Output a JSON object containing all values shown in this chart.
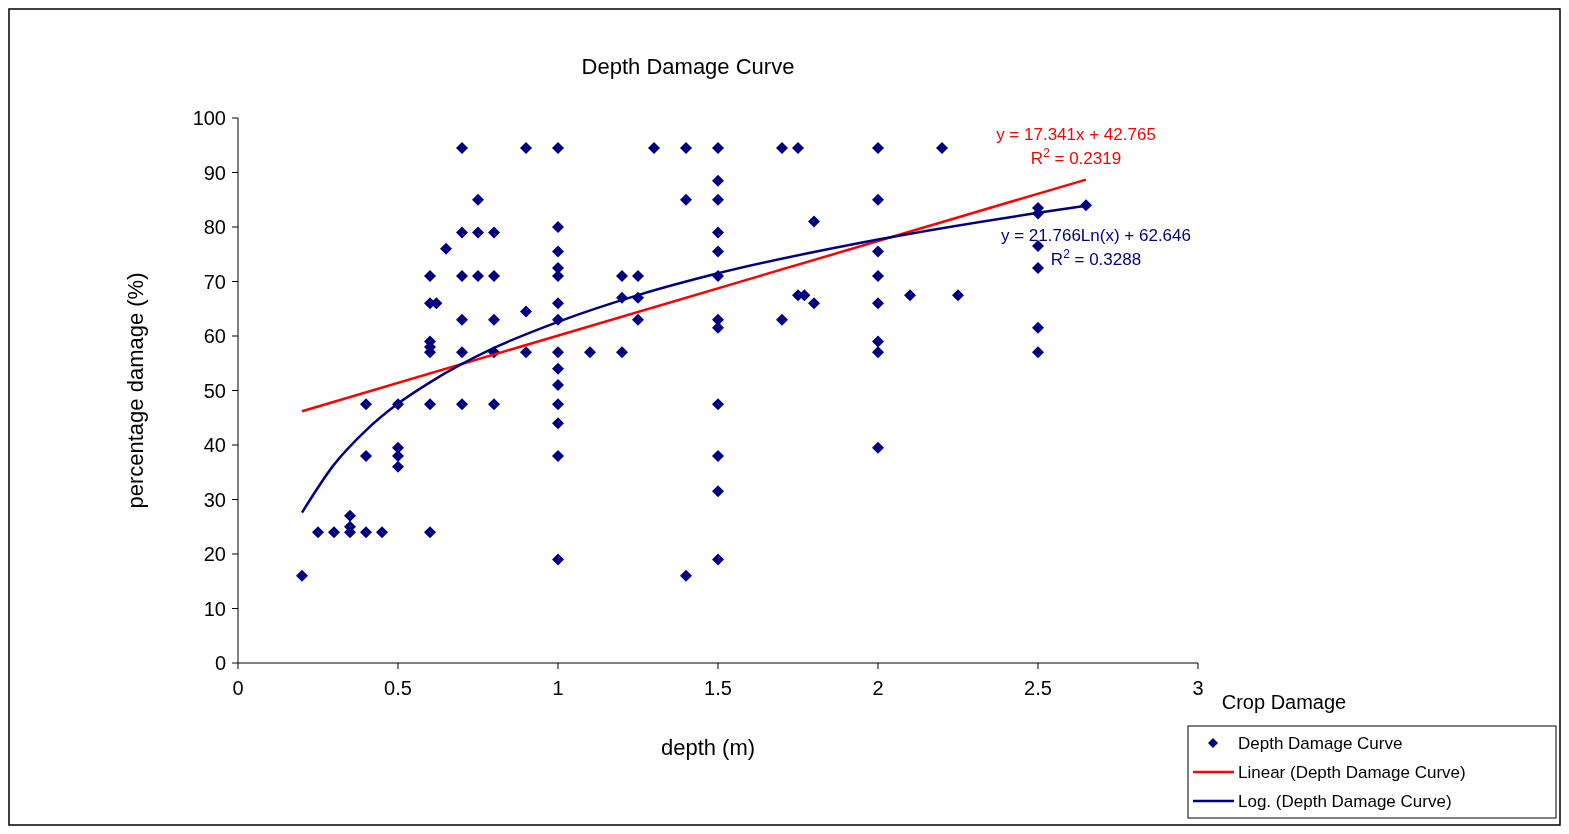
{
  "chart_data": {
    "type": "scatter",
    "title": "Depth Damage Curve",
    "xlabel": "depth (m)",
    "ylabel": "percentage damage (%)",
    "legend_title": "Crop Damage",
    "legend": "bottom right",
    "marker": "diamond",
    "grid": false,
    "xlim": [
      0,
      3
    ],
    "xticks": [
      0,
      0.5,
      1,
      1.5,
      2,
      2.5,
      3
    ],
    "ylim": [
      0,
      100
    ],
    "yticks": [
      0,
      10,
      20,
      30,
      40,
      50,
      60,
      70,
      80,
      90,
      100
    ],
    "series": [
      {
        "name": "Depth Damage Curve",
        "color": "#000080",
        "x": [
          0.2,
          0.25,
          0.3,
          0.35,
          0.35,
          0.35,
          0.4,
          0.45,
          0.4,
          0.4,
          0.5,
          0.5,
          0.5,
          0.5,
          0.6,
          0.6,
          0.6,
          0.6,
          0.6,
          0.6,
          0.62,
          0.6,
          0.65,
          0.7,
          0.7,
          0.7,
          0.7,
          0.7,
          0.7,
          0.75,
          0.75,
          0.75,
          0.8,
          0.8,
          0.8,
          0.8,
          0.8,
          0.9,
          0.9,
          0.9,
          1,
          1,
          1,
          1,
          1,
          1,
          1,
          1,
          1,
          1,
          1,
          1,
          1,
          1,
          1.1,
          1.2,
          1.2,
          1.2,
          1.25,
          1.25,
          1.25,
          1.3,
          1.4,
          1.4,
          1.4,
          1.5,
          1.5,
          1.5,
          1.5,
          1.5,
          1.5,
          1.5,
          1.5,
          1.5,
          1.5,
          1.5,
          1.5,
          1.7,
          1.75,
          1.7,
          1.75,
          1.77,
          1.8,
          1.8,
          2,
          2,
          2,
          2,
          2,
          2,
          2,
          2,
          2.1,
          2.2,
          2.25,
          2.5,
          2.5,
          2.5,
          2.5,
          2.5,
          2.5,
          2.65
        ],
        "values": [
          16,
          24,
          24,
          24,
          25,
          27,
          24,
          24,
          38,
          47.5,
          47.5,
          39.5,
          38,
          36,
          24,
          47.5,
          57,
          58,
          59,
          66,
          66,
          71,
          76,
          94.5,
          79,
          71,
          63,
          57,
          47.5,
          85,
          79,
          71,
          79,
          71,
          63,
          57,
          47.5,
          94.5,
          64.5,
          57,
          94.5,
          80,
          75.5,
          72.5,
          71,
          66,
          63,
          57,
          54,
          51,
          47.5,
          44,
          38,
          19,
          57,
          71,
          67,
          57,
          71,
          67,
          63,
          94.5,
          94.5,
          85,
          16,
          94.5,
          88.5,
          85,
          79,
          75.5,
          71,
          63,
          61.5,
          47.5,
          38,
          31.5,
          19,
          94.5,
          94.5,
          63,
          67.5,
          67.5,
          81,
          66,
          94.5,
          85,
          75.5,
          71,
          66,
          59,
          57,
          39.5,
          67.5,
          94.5,
          67.5,
          83.5,
          82.5,
          76.5,
          72.5,
          61.5,
          57,
          84
        ]
      },
      {
        "name": "Linear (Depth Damage Curve)",
        "type": "line",
        "marker": "none",
        "color": "#ff0000",
        "x": [
          0.2,
          2.65
        ],
        "values": [
          46.2,
          88.7
        ]
      },
      {
        "name": "Log. (Depth Damage Curve)",
        "type": "line",
        "marker": "none",
        "color": "#000080",
        "x": [
          0.2,
          0.3,
          0.4,
          0.5,
          0.6,
          0.8,
          1,
          1.25,
          1.5,
          2,
          2.5,
          2.65
        ],
        "values": [
          27.6,
          36.4,
          42.7,
          47.6,
          51.5,
          57.8,
          62.6,
          67.5,
          71.5,
          77.7,
          82.6,
          83.9
        ]
      }
    ],
    "annotations": [
      "y = 17.341x + 42.765",
      "R$^{2}$ = 0.2319",
      "y = 21.766Ln(x) + 62.646",
      "R$^{2}$ = 0.3288"
    ]
  }
}
